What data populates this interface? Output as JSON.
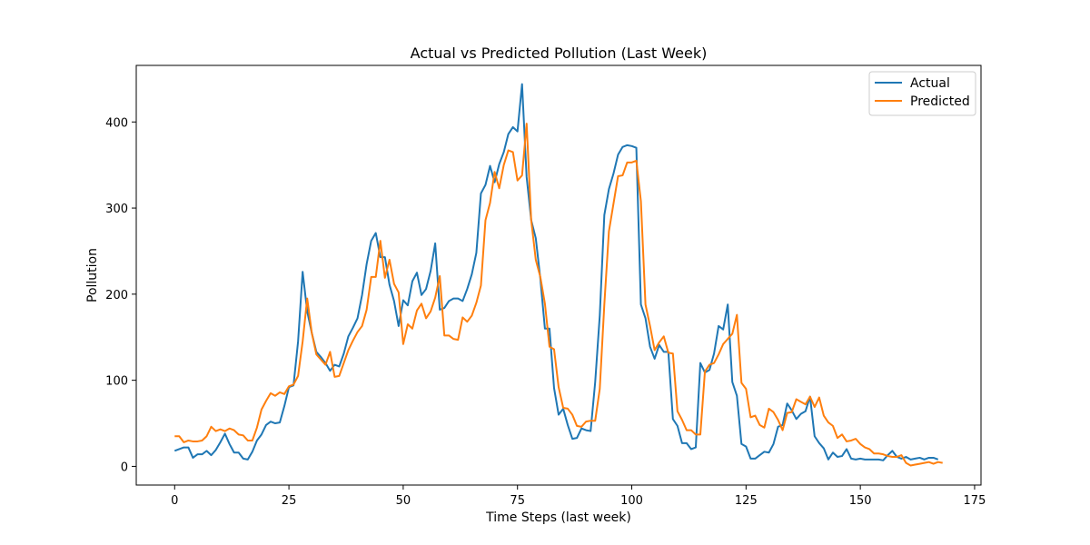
{
  "chart_data": {
    "type": "line",
    "title": "Actual vs Predicted Pollution (Last Week)",
    "xlabel": "Time Steps (last week)",
    "ylabel": "Pollution",
    "xlim": [
      -8.4,
      176.4
    ],
    "ylim": [
      -21.7,
      465.7
    ],
    "xticks": [
      0,
      25,
      50,
      75,
      100,
      125,
      150,
      175
    ],
    "yticks": [
      0,
      100,
      200,
      300,
      400
    ],
    "grid": false,
    "legend": "top-right",
    "series": [
      {
        "name": "Actual",
        "color": "#1f77b4",
        "values": [
          18,
          20,
          22,
          22,
          10,
          14,
          14,
          18,
          13,
          19,
          28,
          38,
          26,
          16,
          16,
          9,
          8,
          17,
          30,
          37,
          48,
          52,
          50,
          51,
          70,
          92,
          94,
          145,
          226,
          180,
          155,
          133,
          127,
          120,
          111,
          118,
          116,
          131,
          151,
          161,
          172,
          199,
          235,
          262,
          271,
          243,
          243,
          211,
          192,
          163,
          193,
          187,
          215,
          225,
          199,
          206,
          227,
          259,
          182,
          184,
          192,
          195,
          195,
          192,
          206,
          223,
          248,
          317,
          327,
          349,
          330,
          351,
          365,
          386,
          394,
          389,
          444,
          336,
          286,
          265,
          218,
          160,
          160,
          91,
          60,
          67,
          48,
          32,
          33,
          44,
          42,
          41,
          98,
          175,
          292,
          322,
          340,
          362,
          371,
          373,
          372,
          370,
          188,
          172,
          139,
          125,
          141,
          133,
          133,
          55,
          47,
          27,
          27,
          20,
          22,
          120,
          109,
          112,
          131,
          163,
          159,
          188,
          98,
          82,
          26,
          23,
          9,
          9,
          13,
          17,
          16,
          26,
          46,
          48,
          73,
          65,
          55,
          61,
          64,
          81,
          35,
          27,
          21,
          8,
          16,
          11,
          12,
          20,
          9,
          8,
          9,
          8,
          8,
          8,
          8,
          7,
          13,
          18,
          11,
          9,
          11,
          8,
          9,
          10,
          8,
          10,
          10,
          8
        ],
        "point_tokens": []
      },
      {
        "name": "Predicted",
        "color": "#ff7f0e",
        "values": [
          35,
          35,
          28,
          30,
          29,
          29,
          30,
          35,
          46,
          41,
          43,
          41,
          44,
          42,
          37,
          36,
          30,
          30,
          45,
          66,
          76,
          85,
          82,
          86,
          84,
          93,
          95,
          105,
          145,
          195,
          155,
          130,
          124,
          118,
          133,
          104,
          105,
          120,
          135,
          146,
          156,
          163,
          182,
          220,
          220,
          262,
          219,
          240,
          212,
          202,
          142,
          165,
          160,
          181,
          189,
          172,
          180,
          196,
          221,
          152,
          152,
          148,
          147,
          173,
          168,
          175,
          190,
          210,
          286,
          306,
          342,
          323,
          350,
          367,
          365,
          332,
          338,
          398,
          286,
          240,
          220,
          189,
          139,
          136,
          92,
          68,
          67,
          60,
          47,
          46,
          52,
          53,
          53,
          90,
          188,
          273,
          305,
          337,
          338,
          353,
          353,
          355,
          308,
          188,
          163,
          135,
          144,
          151,
          132,
          131,
          64,
          54,
          42,
          42,
          37,
          37,
          110,
          118,
          120,
          130,
          142,
          148,
          154,
          176,
          97,
          90,
          57,
          59,
          48,
          45,
          67,
          63,
          54,
          42,
          62,
          63,
          78,
          75,
          72,
          81,
          69,
          80,
          59,
          51,
          47,
          33,
          37,
          29,
          30,
          32,
          26,
          22,
          20,
          15,
          15,
          14,
          12,
          11,
          11,
          13,
          4,
          1,
          2,
          3,
          4,
          5,
          3,
          5,
          4
        ]
      }
    ]
  }
}
